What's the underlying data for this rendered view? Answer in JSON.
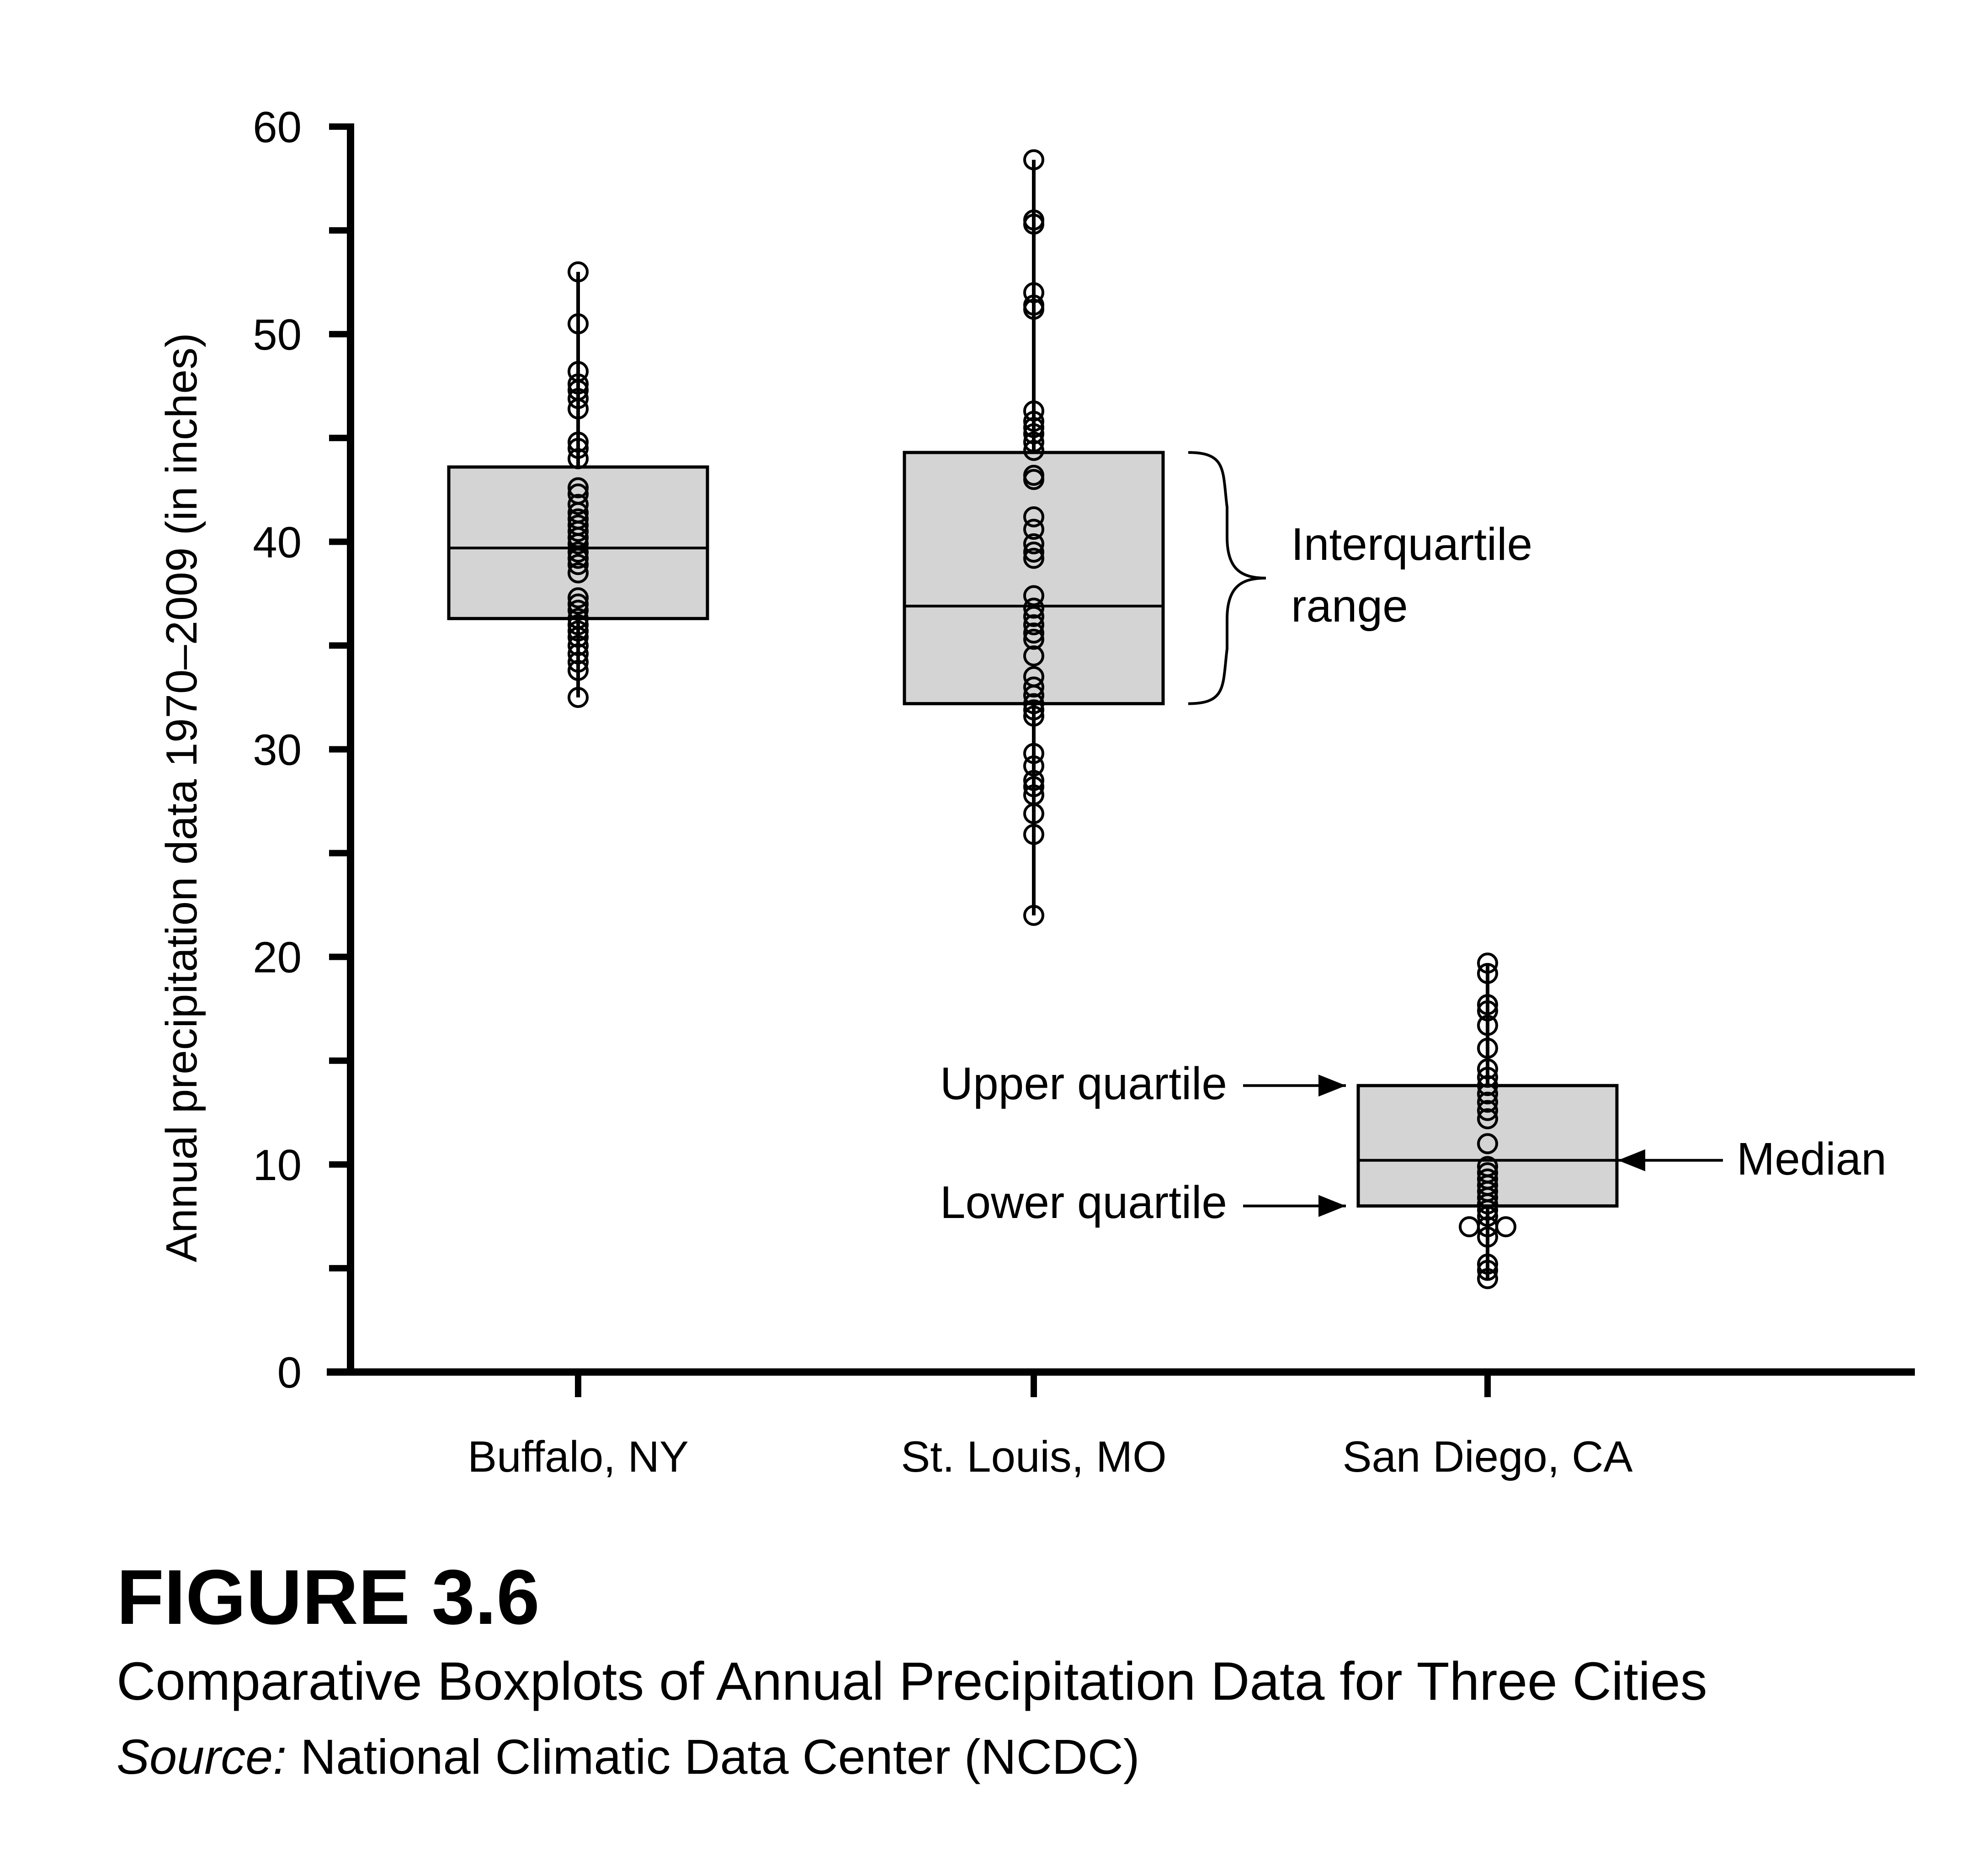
{
  "figure": {
    "label": "FIGURE 3.6",
    "title": "Comparative Boxplots of Annual Precipitation Data for Three Cities",
    "source_label": "Source:",
    "source_text": "National Climatic Data Center (NCDC)"
  },
  "chart_data": {
    "type": "boxplot",
    "ylabel": "Annual precipitation data 1970–2009 (in inches)",
    "xlabel": "",
    "ylim": [
      0,
      60
    ],
    "y_ticks": [
      0,
      10,
      20,
      30,
      40,
      50,
      60
    ],
    "y_tick_labels": [
      "0",
      "10",
      "20",
      "30",
      "40",
      "50",
      "60"
    ],
    "categories": [
      "Buffalo, NY",
      "St. Louis, MO",
      "San Diego, CA"
    ],
    "series": [
      {
        "category": "Buffalo, NY",
        "min": 32.5,
        "q1": 36.3,
        "median": 39.7,
        "q3": 43.6,
        "max": 53.0,
        "points": [
          53.0,
          50.5,
          48.2,
          47.6,
          47.3,
          46.9,
          46.4,
          44.8,
          44.5,
          44.0,
          42.6,
          42.3,
          41.8,
          41.4,
          41.1,
          40.8,
          40.5,
          40.2,
          39.9,
          39.5,
          39.2,
          38.9,
          38.5,
          37.3,
          37.0,
          36.7,
          36.3,
          36.0,
          35.7,
          35.4,
          35.0,
          34.6,
          34.2,
          33.8,
          32.5
        ]
      },
      {
        "category": "St. Louis, MO",
        "min": 22.0,
        "q1": 32.2,
        "median": 36.9,
        "q3": 44.3,
        "max": 58.4,
        "points": [
          58.4,
          55.5,
          55.3,
          52.0,
          51.4,
          51.2,
          46.3,
          45.8,
          45.5,
          45.2,
          44.8,
          44.4,
          43.2,
          43.0,
          41.2,
          40.6,
          39.9,
          39.5,
          39.2,
          37.4,
          36.8,
          36.4,
          36.0,
          35.6,
          35.3,
          34.5,
          33.5,
          33.0,
          32.6,
          32.2,
          31.9,
          31.6,
          29.8,
          29.2,
          28.5,
          28.2,
          27.8,
          26.9,
          25.9,
          22.0
        ]
      },
      {
        "category": "San Diego, CA",
        "min": 4.5,
        "q1": 8.0,
        "median": 10.2,
        "q3": 13.8,
        "max": 19.7,
        "points": [
          19.7,
          19.2,
          17.7,
          17.4,
          16.7,
          15.6,
          14.6,
          14.2,
          13.8,
          13.4,
          13.0,
          12.6,
          12.2,
          11.0,
          9.9,
          9.6,
          9.3,
          9.0,
          8.7,
          8.4,
          8.1,
          7.8,
          7.5,
          7.0,
          7.0,
          7.0,
          6.5,
          5.2,
          4.9,
          4.5
        ]
      }
    ],
    "annotations": {
      "iqr": [
        "Interquartile",
        "range"
      ],
      "upper_quartile": "Upper quartile",
      "lower_quartile": "Lower quartile",
      "median": "Median"
    }
  }
}
